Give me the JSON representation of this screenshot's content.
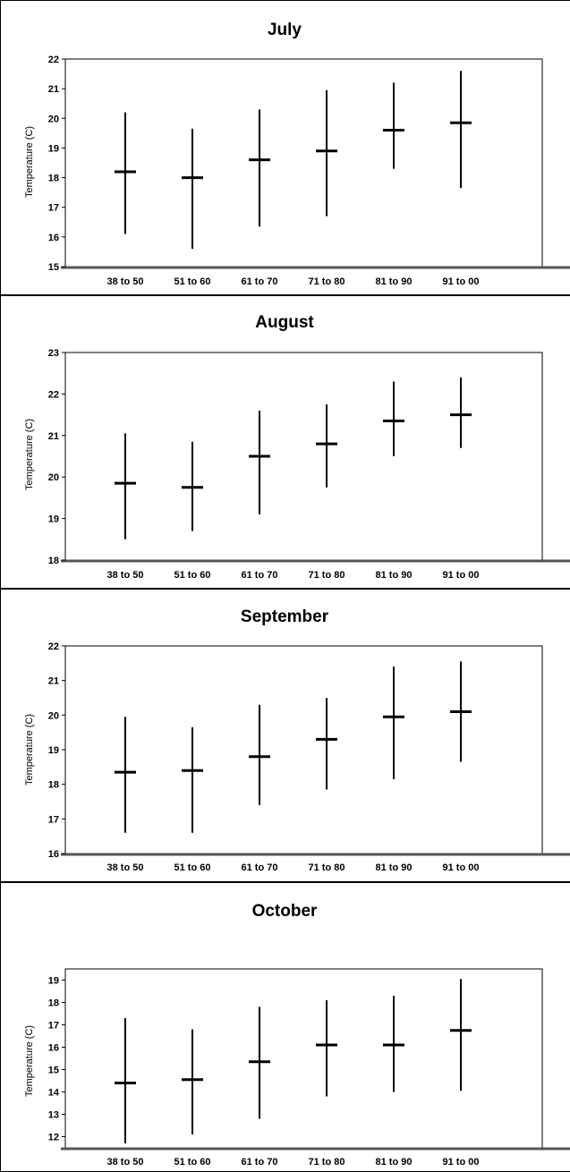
{
  "chart_data": [
    {
      "type": "scatter",
      "title": "July",
      "ylabel": "Temperature (C)",
      "categories": [
        "38 to 50",
        "51 to 60",
        "61 to 70",
        "71 to 80",
        "81 to 90",
        "91 to 00"
      ],
      "mean": [
        18.2,
        18.0,
        18.6,
        18.9,
        19.6,
        19.85
      ],
      "high": [
        20.2,
        19.65,
        20.3,
        20.95,
        21.2,
        21.6
      ],
      "low": [
        16.1,
        15.6,
        16.35,
        16.7,
        18.3,
        17.65
      ],
      "ylim": [
        15,
        22
      ],
      "yticks": [
        "15",
        "16",
        "17",
        "18",
        "19",
        "20",
        "21",
        "22"
      ]
    },
    {
      "type": "scatter",
      "title": "August",
      "ylabel": "Temperature (C)",
      "categories": [
        "38 to 50",
        "51 to 60",
        "61 to 70",
        "71 to 80",
        "81 to 90",
        "91 to 00"
      ],
      "mean": [
        19.85,
        19.75,
        20.5,
        20.8,
        21.35,
        21.5
      ],
      "high": [
        21.05,
        20.85,
        21.6,
        21.75,
        22.3,
        22.4
      ],
      "low": [
        18.5,
        18.7,
        19.1,
        19.75,
        20.5,
        20.7
      ],
      "ylim": [
        18,
        23
      ],
      "yticks": [
        "18",
        "19",
        "20",
        "21",
        "22",
        "23"
      ]
    },
    {
      "type": "scatter",
      "title": "September",
      "ylabel": "Temperature (C)",
      "categories": [
        "38 to 50",
        "51 to 60",
        "61 to 70",
        "71 to 80",
        "81 to 90",
        "91 to 00"
      ],
      "mean": [
        18.35,
        18.4,
        18.8,
        19.3,
        19.95,
        20.1
      ],
      "high": [
        19.95,
        19.65,
        20.3,
        20.5,
        21.4,
        21.55
      ],
      "low": [
        16.6,
        16.6,
        17.4,
        17.85,
        18.15,
        18.65
      ],
      "ylim": [
        16,
        22
      ],
      "yticks": [
        "16",
        "17",
        "18",
        "19",
        "20",
        "21",
        "22"
      ]
    },
    {
      "type": "scatter",
      "title": "October",
      "ylabel": "Temperature (C)",
      "categories": [
        "38 to 50",
        "51 to 60",
        "61 to 70",
        "71 to 80",
        "81 to 90",
        "91 to 00"
      ],
      "mean": [
        14.4,
        14.55,
        15.35,
        16.1,
        16.1,
        16.75
      ],
      "high": [
        17.3,
        16.8,
        17.8,
        18.1,
        18.3,
        19.05
      ],
      "low": [
        11.7,
        12.1,
        12.8,
        13.8,
        14.0,
        14.05
      ],
      "ylim": [
        11.5,
        19.5
      ],
      "yticks": [
        "12",
        "13",
        "14",
        "15",
        "16",
        "17",
        "18",
        "19"
      ]
    }
  ]
}
